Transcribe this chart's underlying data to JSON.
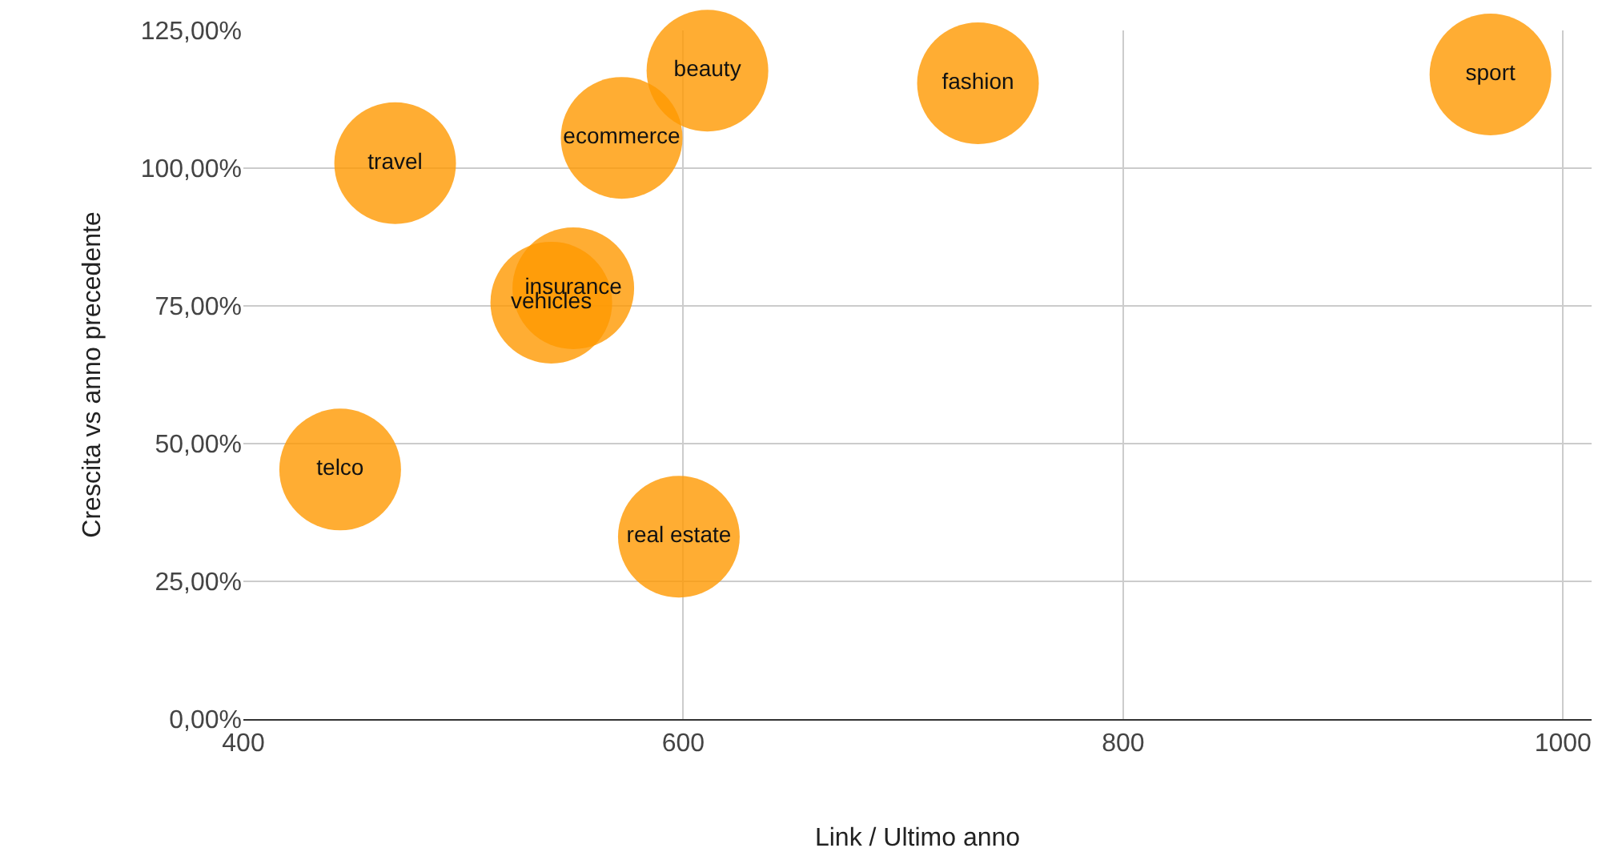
{
  "chart_data": {
    "type": "bubble",
    "xlabel": "Link / Ultimo anno",
    "ylabel": "Crescita vs anno precedente",
    "xlim": [
      400,
      1013
    ],
    "xticks": [
      400,
      600,
      800,
      1000
    ],
    "ylim": [
      0,
      125
    ],
    "yticks": [
      {
        "value": 0,
        "label": "0,00%"
      },
      {
        "value": 25,
        "label": "25,00%"
      },
      {
        "value": 50,
        "label": "50,00%"
      },
      {
        "value": 75,
        "label": "75,00%"
      },
      {
        "value": 100,
        "label": "100,00%"
      },
      {
        "value": 125,
        "label": "125,00%"
      }
    ],
    "grid": true,
    "legend": false,
    "series": [
      {
        "name": "sport",
        "color": "#ff9900",
        "x": [
          967
        ],
        "values": [
          117
        ],
        "sizes": [
          1
        ]
      },
      {
        "name": "fashion",
        "color": "#ff9900",
        "x": [
          734
        ],
        "values": [
          115.4
        ],
        "sizes": [
          1
        ]
      },
      {
        "name": "beauty",
        "color": "#ff9900",
        "x": [
          611
        ],
        "values": [
          117.7
        ],
        "sizes": [
          1
        ]
      },
      {
        "name": "ecommerce",
        "color": "#ff9900",
        "x": [
          572
        ],
        "values": [
          105.5
        ],
        "sizes": [
          1
        ]
      },
      {
        "name": "travel",
        "color": "#ff9900",
        "x": [
          469
        ],
        "values": [
          100.9
        ],
        "sizes": [
          1
        ]
      },
      {
        "name": "insurance",
        "color": "#ff9900",
        "x": [
          550
        ],
        "values": [
          78.2
        ],
        "sizes": [
          1
        ]
      },
      {
        "name": "vehicles",
        "color": "#ff9900",
        "x": [
          540
        ],
        "values": [
          75.6
        ],
        "sizes": [
          1
        ]
      },
      {
        "name": "telco",
        "color": "#ff9900",
        "x": [
          444
        ],
        "values": [
          45.3
        ],
        "sizes": [
          1
        ]
      },
      {
        "name": "real estate",
        "color": "#ff9900",
        "x": [
          598
        ],
        "values": [
          33.1
        ],
        "sizes": [
          1
        ]
      }
    ]
  }
}
